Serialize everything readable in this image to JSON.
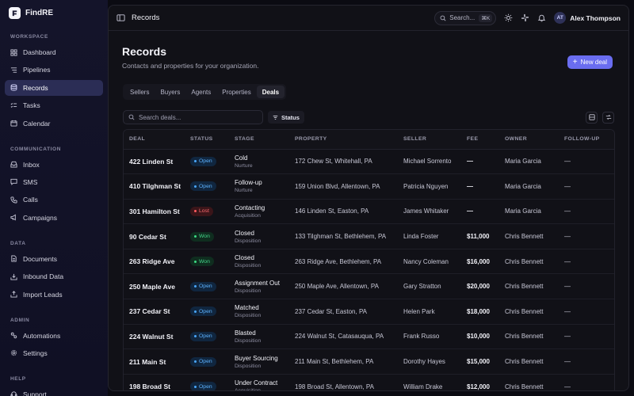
{
  "brand": {
    "name": "FindRE"
  },
  "sidebar": {
    "sections": [
      {
        "label": "WORKSPACE",
        "items": [
          {
            "label": "Dashboard",
            "icon": "dashboard-icon"
          },
          {
            "label": "Pipelines",
            "icon": "pipelines-icon"
          },
          {
            "label": "Records",
            "icon": "records-icon",
            "active": true
          },
          {
            "label": "Tasks",
            "icon": "tasks-icon"
          },
          {
            "label": "Calendar",
            "icon": "calendar-icon"
          }
        ]
      },
      {
        "label": "COMMUNICATION",
        "items": [
          {
            "label": "Inbox",
            "icon": "inbox-icon"
          },
          {
            "label": "SMS",
            "icon": "sms-icon"
          },
          {
            "label": "Calls",
            "icon": "phone-icon"
          },
          {
            "label": "Campaigns",
            "icon": "megaphone-icon"
          }
        ]
      },
      {
        "label": "DATA",
        "items": [
          {
            "label": "Documents",
            "icon": "document-icon"
          },
          {
            "label": "Inbound Data",
            "icon": "inbound-data-icon"
          },
          {
            "label": "Import Leads",
            "icon": "upload-icon"
          }
        ]
      },
      {
        "label": "ADMIN",
        "items": [
          {
            "label": "Automations",
            "icon": "automations-icon"
          },
          {
            "label": "Settings",
            "icon": "gear-icon"
          }
        ]
      },
      {
        "label": "HELP",
        "items": [
          {
            "label": "Support",
            "icon": "support-icon"
          }
        ]
      }
    ]
  },
  "topbar": {
    "title": "Records",
    "search_label": "Search...",
    "search_shortcut": "⌘K",
    "user": {
      "initials": "AT",
      "name": "Alex Thompson"
    }
  },
  "page": {
    "title": "Records",
    "subtitle": "Contacts and properties for your organization.",
    "new_button": "New deal"
  },
  "tabs": [
    {
      "label": "Sellers"
    },
    {
      "label": "Buyers"
    },
    {
      "label": "Agents"
    },
    {
      "label": "Properties"
    },
    {
      "label": "Deals",
      "active": true
    }
  ],
  "filters": {
    "search_placeholder": "Search deals...",
    "status_label": "Status"
  },
  "table": {
    "columns": [
      "DEAL",
      "STATUS",
      "STAGE",
      "PROPERTY",
      "SELLER",
      "FEE",
      "OWNER",
      "FOLLOW-UP"
    ],
    "rows": [
      {
        "deal": "422 Linden St",
        "status": "Open",
        "stage": "Cold",
        "stage_sub": "Nurture",
        "property": "172 Chew St, Whitehall, PA",
        "seller": "Michael Sorrento",
        "fee": "—",
        "owner": "Maria Garcia",
        "followup": "—"
      },
      {
        "deal": "410 Tilghman St",
        "status": "Open",
        "stage": "Follow-up",
        "stage_sub": "Nurture",
        "property": "159 Union Blvd, Allentown, PA",
        "seller": "Patricia Nguyen",
        "fee": "—",
        "owner": "Maria Garcia",
        "followup": "—"
      },
      {
        "deal": "301 Hamilton St",
        "status": "Lost",
        "stage": "Contacting",
        "stage_sub": "Acquisition",
        "property": "146 Linden St, Easton, PA",
        "seller": "James Whitaker",
        "fee": "—",
        "owner": "Maria Garcia",
        "followup": "—"
      },
      {
        "deal": "90 Cedar St",
        "status": "Won",
        "stage": "Closed",
        "stage_sub": "Disposition",
        "property": "133 Tilghman St, Bethlehem, PA",
        "seller": "Linda Foster",
        "fee": "$11,000",
        "owner": "Chris Bennett",
        "followup": "—"
      },
      {
        "deal": "263 Ridge Ave",
        "status": "Won",
        "stage": "Closed",
        "stage_sub": "Disposition",
        "property": "263 Ridge Ave, Bethlehem, PA",
        "seller": "Nancy Coleman",
        "fee": "$16,000",
        "owner": "Chris Bennett",
        "followup": "—"
      },
      {
        "deal": "250 Maple Ave",
        "status": "Open",
        "stage": "Assignment Out",
        "stage_sub": "Disposition",
        "property": "250 Maple Ave, Allentown, PA",
        "seller": "Gary Stratton",
        "fee": "$20,000",
        "owner": "Chris Bennett",
        "followup": "—"
      },
      {
        "deal": "237 Cedar St",
        "status": "Open",
        "stage": "Matched",
        "stage_sub": "Disposition",
        "property": "237 Cedar St, Easton, PA",
        "seller": "Helen Park",
        "fee": "$18,000",
        "owner": "Chris Bennett",
        "followup": "—"
      },
      {
        "deal": "224 Walnut St",
        "status": "Open",
        "stage": "Blasted",
        "stage_sub": "Disposition",
        "property": "224 Walnut St, Catasauqua, PA",
        "seller": "Frank Russo",
        "fee": "$10,000",
        "owner": "Chris Bennett",
        "followup": "—"
      },
      {
        "deal": "211 Main St",
        "status": "Open",
        "stage": "Buyer Sourcing",
        "stage_sub": "Disposition",
        "property": "211 Main St, Bethlehem, PA",
        "seller": "Dorothy Hayes",
        "fee": "$15,000",
        "owner": "Chris Bennett",
        "followup": "—"
      },
      {
        "deal": "198 Broad St",
        "status": "Open",
        "stage": "Under Contract",
        "stage_sub": "Acquisition",
        "property": "198 Broad St, Allentown, PA",
        "seller": "William Drake",
        "fee": "$12,000",
        "owner": "Chris Bennett",
        "followup": "—"
      }
    ]
  },
  "colors": {
    "accent": "#6a6df0",
    "open": "#4aa8ff",
    "won": "#3ddc84",
    "lost": "#ff5a5f"
  }
}
